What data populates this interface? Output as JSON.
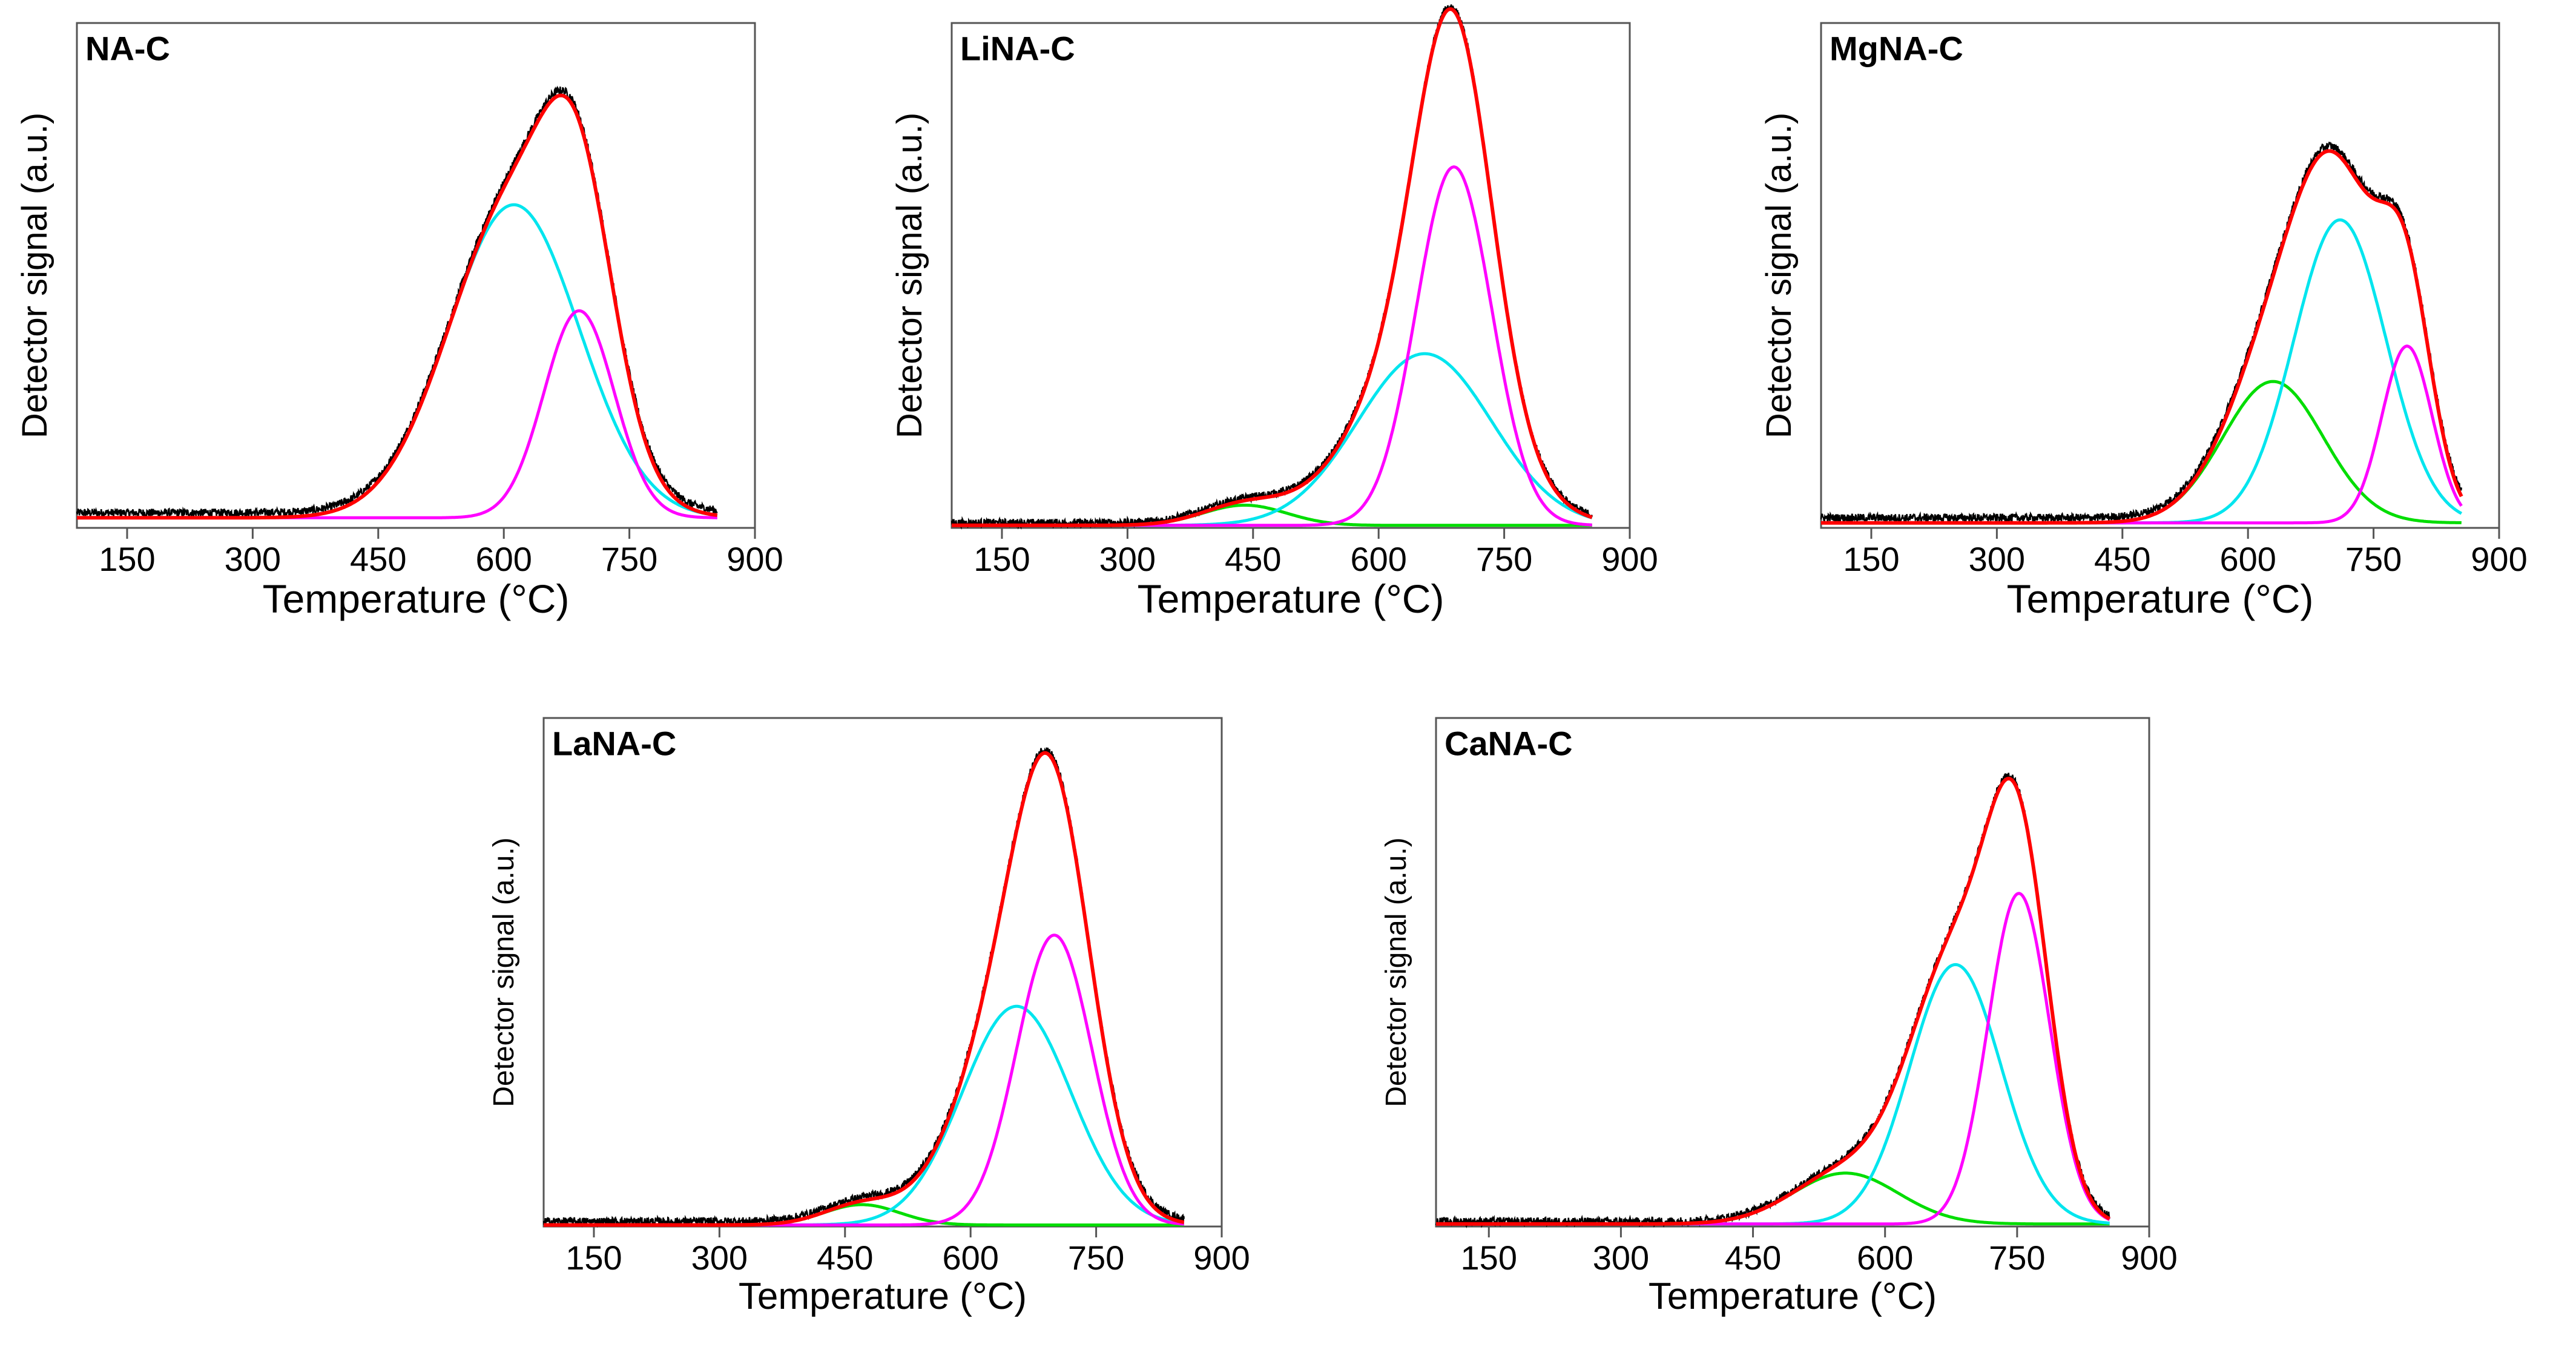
{
  "chart_data": [
    {
      "type": "line",
      "panel_label": "NA-C",
      "xlabel": "Temperature (°C)",
      "ylabel": "Detector signal (a.u.)",
      "xlim": [
        90,
        900
      ],
      "ylim": [
        0,
        100
      ],
      "xticks": [
        "150",
        "300",
        "450",
        "600",
        "750",
        "900"
      ],
      "xtick_values": [
        150,
        300,
        450,
        600,
        750,
        900
      ],
      "grid": false,
      "legend": "none",
      "series": [
        {
          "color": "#000000",
          "role": "measured",
          "values_source": "sum_plus_noise"
        },
        {
          "color": "#00e5ee",
          "role": "component",
          "peak": {
            "center": 612,
            "height": 62,
            "sigma": 78
          }
        },
        {
          "color": "#ff00ff",
          "role": "component",
          "peak": {
            "center": 690,
            "height": 41,
            "sigma": 42
          }
        },
        {
          "color": "#ff0000",
          "role": "fit_sum"
        }
      ],
      "baseline_measured": 3,
      "baseline_components": 2,
      "x_range_data": [
        90,
        855
      ]
    },
    {
      "type": "line",
      "panel_label": "LiNA-C",
      "xlabel": "Temperature (°C)",
      "ylabel": "Detector signal (a.u.)",
      "xlim": [
        90,
        900
      ],
      "ylim": [
        0,
        100
      ],
      "xticks": [
        "150",
        "300",
        "450",
        "600",
        "750",
        "900"
      ],
      "xtick_values": [
        150,
        300,
        450,
        600,
        750,
        900
      ],
      "grid": false,
      "legend": "none",
      "series": [
        {
          "color": "#000000",
          "role": "measured",
          "values_source": "sum_plus_noise"
        },
        {
          "color": "#00dd00",
          "role": "component",
          "peak": {
            "center": 440,
            "height": 4,
            "sigma": 50
          }
        },
        {
          "color": "#00e5ee",
          "role": "component",
          "peak": {
            "center": 655,
            "height": 34,
            "sigma": 80
          }
        },
        {
          "color": "#ff00ff",
          "role": "component",
          "peak": {
            "center": 690,
            "height": 71,
            "sigma": 45
          }
        },
        {
          "color": "#ff0000",
          "role": "fit_sum"
        }
      ],
      "baseline_measured": 1,
      "baseline_components": 0.5,
      "x_range_data": [
        90,
        855
      ]
    },
    {
      "type": "line",
      "panel_label": "MgNA-C",
      "xlabel": "Temperature (°C)",
      "ylabel": "Detector signal (a.u.)",
      "xlim": [
        90,
        900
      ],
      "ylim": [
        0,
        100
      ],
      "xticks": [
        "150",
        "300",
        "450",
        "600",
        "750",
        "900"
      ],
      "xtick_values": [
        150,
        300,
        450,
        600,
        750,
        900
      ],
      "grid": false,
      "legend": "none",
      "series": [
        {
          "color": "#000000",
          "role": "measured",
          "values_source": "sum_plus_noise"
        },
        {
          "color": "#00dd00",
          "role": "component",
          "peak": {
            "center": 630,
            "height": 28,
            "sigma": 60
          }
        },
        {
          "color": "#00e5ee",
          "role": "component",
          "peak": {
            "center": 710,
            "height": 60,
            "sigma": 55
          }
        },
        {
          "color": "#ff00ff",
          "role": "component",
          "peak": {
            "center": 790,
            "height": 35,
            "sigma": 30
          }
        },
        {
          "color": "#ff0000",
          "role": "fit_sum"
        }
      ],
      "baseline_measured": 2,
      "baseline_components": 1,
      "x_range_data": [
        90,
        855
      ]
    },
    {
      "type": "line",
      "panel_label": "LaNA-C",
      "xlabel": "Temperature (°C)",
      "ylabel": "Detector signal (a.u.)",
      "xlim": [
        90,
        900
      ],
      "ylim": [
        0,
        100
      ],
      "xticks": [
        "150",
        "300",
        "450",
        "600",
        "750",
        "900"
      ],
      "xtick_values": [
        150,
        300,
        450,
        600,
        750,
        900
      ],
      "grid": false,
      "legend": "none",
      "series": [
        {
          "color": "#000000",
          "role": "measured",
          "values_source": "sum_plus_noise"
        },
        {
          "color": "#00dd00",
          "role": "component",
          "peak": {
            "center": 470,
            "height": 4,
            "sigma": 45
          }
        },
        {
          "color": "#00e5ee",
          "role": "component",
          "peak": {
            "center": 655,
            "height": 43,
            "sigma": 65
          }
        },
        {
          "color": "#ff00ff",
          "role": "component",
          "peak": {
            "center": 700,
            "height": 57,
            "sigma": 45
          }
        },
        {
          "color": "#ff0000",
          "role": "fit_sum"
        }
      ],
      "baseline_measured": 1,
      "baseline_components": 0.3,
      "x_range_data": [
        90,
        855
      ]
    },
    {
      "type": "line",
      "panel_label": "CaNA-C",
      "xlabel": "Temperature (°C)",
      "ylabel": "Detector signal (a.u.)",
      "xlim": [
        90,
        900
      ],
      "ylim": [
        0,
        100
      ],
      "xticks": [
        "150",
        "300",
        "450",
        "600",
        "750",
        "900"
      ],
      "xtick_values": [
        150,
        300,
        450,
        600,
        750,
        900
      ],
      "grid": false,
      "legend": "none",
      "series": [
        {
          "color": "#000000",
          "role": "measured",
          "values_source": "sum_plus_noise"
        },
        {
          "color": "#00dd00",
          "role": "component",
          "peak": {
            "center": 555,
            "height": 10,
            "sigma": 60
          }
        },
        {
          "color": "#00e5ee",
          "role": "component",
          "peak": {
            "center": 680,
            "height": 51,
            "sigma": 52
          }
        },
        {
          "color": "#ff00ff",
          "role": "component",
          "peak": {
            "center": 752,
            "height": 65,
            "sigma": 35
          }
        },
        {
          "color": "#ff0000",
          "role": "fit_sum"
        }
      ],
      "baseline_measured": 1,
      "baseline_components": 0.5,
      "x_range_data": [
        90,
        855
      ]
    }
  ]
}
